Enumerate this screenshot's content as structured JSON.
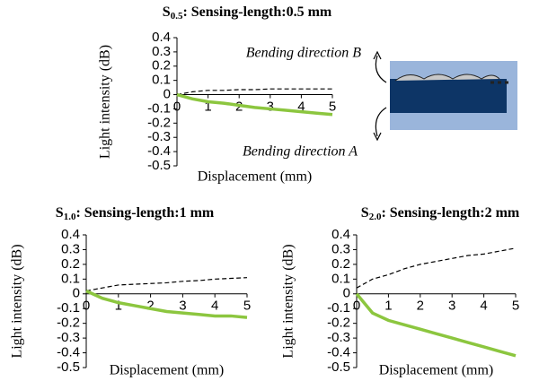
{
  "chart_data": [
    {
      "type": "line",
      "title_symbol": "S",
      "title_subscript": "0.5",
      "title": ": Sensing-length:0.5 mm",
      "x_label": "Displacement (mm)",
      "y_label": "Light intensity (dB)",
      "annotations": [
        "Bending direction B",
        "Bending direction A"
      ],
      "x": [
        0,
        0.5,
        1,
        1.5,
        2,
        2.5,
        3,
        3.5,
        4,
        4.5,
        5
      ],
      "series": [
        {
          "color": "#000000",
          "dash": true,
          "values": [
            0,
            0.02,
            0.03,
            0.03,
            0.035,
            0.035,
            0.04,
            0.04,
            0.04,
            0.04,
            0.04
          ]
        },
        {
          "color": "#8cc63f",
          "dash": false,
          "values": [
            0,
            -0.03,
            -0.05,
            -0.06,
            -0.075,
            -0.09,
            -0.1,
            -0.11,
            -0.12,
            -0.13,
            -0.14
          ]
        }
      ],
      "xlim": [
        0,
        5
      ],
      "xticks": [
        0,
        1,
        2,
        3,
        4,
        5
      ],
      "ylim": [
        -0.5,
        0.4
      ],
      "yticks": [
        0.4,
        0.3,
        0.2,
        0.1,
        0,
        -0.1,
        -0.2,
        -0.3,
        -0.4,
        -0.5
      ]
    },
    {
      "type": "line",
      "title_symbol": "S",
      "title_subscript": "1.0",
      "title": ": Sensing-length:1 mm",
      "x_label": "Displacement (mm)",
      "y_label": "Light intensity (dB)",
      "x": [
        0,
        0.5,
        1,
        1.5,
        2,
        2.5,
        3,
        3.5,
        4,
        4.5,
        5
      ],
      "series": [
        {
          "color": "#000000",
          "dash": true,
          "values": [
            0.02,
            0.04,
            0.06,
            0.065,
            0.07,
            0.075,
            0.085,
            0.09,
            0.1,
            0.105,
            0.11
          ]
        },
        {
          "color": "#8cc63f",
          "dash": false,
          "values": [
            0.02,
            -0.03,
            -0.06,
            -0.08,
            -0.1,
            -0.12,
            -0.13,
            -0.14,
            -0.15,
            -0.15,
            -0.16
          ]
        }
      ],
      "xlim": [
        0,
        5
      ],
      "xticks": [
        0,
        1,
        2,
        3,
        4,
        5
      ],
      "ylim": [
        -0.5,
        0.4
      ],
      "yticks": [
        0.4,
        0.3,
        0.2,
        0.1,
        0,
        -0.1,
        -0.2,
        -0.3,
        -0.4,
        -0.5
      ]
    },
    {
      "type": "line",
      "title_symbol": "S",
      "title_subscript": "2.0",
      "title": ": Sensing-length:2 mm",
      "x_label": "Displacement (mm)",
      "y_label": "Light intensity (dB)",
      "x": [
        0,
        0.5,
        1,
        1.5,
        2,
        2.5,
        3,
        3.5,
        4,
        4.5,
        5
      ],
      "series": [
        {
          "color": "#000000",
          "dash": true,
          "values": [
            0.04,
            0.1,
            0.13,
            0.17,
            0.2,
            0.22,
            0.24,
            0.26,
            0.27,
            0.29,
            0.31
          ]
        },
        {
          "color": "#8cc63f",
          "dash": false,
          "values": [
            0,
            -0.13,
            -0.18,
            -0.21,
            -0.24,
            -0.27,
            -0.3,
            -0.33,
            -0.36,
            -0.39,
            -0.42
          ]
        }
      ],
      "xlim": [
        0,
        5
      ],
      "xticks": [
        0,
        1,
        2,
        3,
        4,
        5
      ],
      "ylim": [
        -0.5,
        0.4
      ],
      "yticks": [
        0.4,
        0.3,
        0.2,
        0.1,
        0,
        -0.1,
        -0.2,
        -0.3,
        -0.4,
        -0.5
      ]
    }
  ]
}
